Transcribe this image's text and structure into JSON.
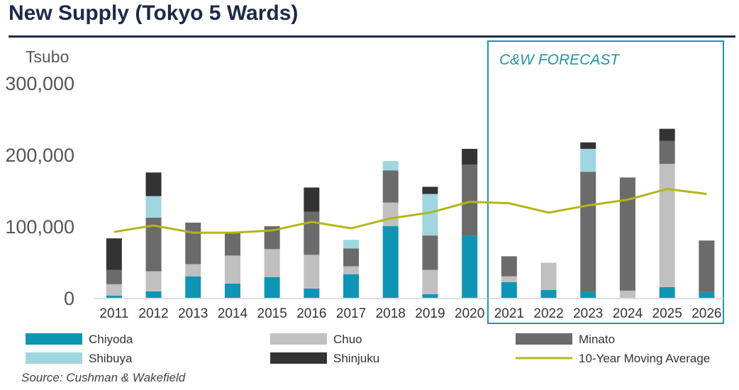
{
  "header": {
    "title": "New Supply (Tokyo 5 Wards)"
  },
  "footer": {
    "source": "Source: Cushman & Wakefield"
  },
  "forecast_label": "C&W FORECAST",
  "colors": {
    "chiyoda": "#0e95b3",
    "chuo": "#c0c0c0",
    "minato": "#6b6b6b",
    "shibuya": "#9fd6e0",
    "shinjuku": "#333333",
    "moving_average": "#b3b519",
    "forecast_box": "#1e96a6",
    "title": "#1b2a4a"
  },
  "chart_data": {
    "type": "bar",
    "stacked": true,
    "ylabel": "Tsubo",
    "ylim": [
      0,
      300000
    ],
    "yticks": [
      "0",
      "100,000",
      "200,000",
      "300,000"
    ],
    "ytick_values": [
      0,
      100000,
      200000,
      300000
    ],
    "grid": false,
    "legend_position": "bottom",
    "categories": [
      "2011",
      "2012",
      "2013",
      "2014",
      "2015",
      "2016",
      "2017",
      "2018",
      "2019",
      "2020",
      "2021",
      "2022",
      "2023",
      "2024",
      "2025",
      "2026"
    ],
    "forecast_from": "2021",
    "series": [
      {
        "name": "Chiyoda",
        "key": "chiyoda",
        "values": [
          3000,
          9000,
          30000,
          20000,
          29000,
          13000,
          33000,
          100000,
          5000,
          87000,
          22000,
          11000,
          8000,
          0,
          15000,
          8000
        ]
      },
      {
        "name": "Chuo",
        "key": "chuo",
        "values": [
          16000,
          28000,
          17000,
          39000,
          39000,
          47000,
          11000,
          33000,
          34000,
          0,
          8000,
          38000,
          0,
          10000,
          172000,
          0
        ]
      },
      {
        "name": "Minato",
        "key": "minato",
        "values": [
          20000,
          75000,
          58000,
          32000,
          32000,
          60000,
          25000,
          45000,
          48000,
          99000,
          28000,
          0,
          168000,
          158000,
          32000,
          72000
        ]
      },
      {
        "name": "Shibuya",
        "key": "shibuya",
        "values": [
          0,
          30000,
          0,
          0,
          0,
          0,
          12000,
          13000,
          58000,
          0,
          0,
          0,
          32000,
          0,
          0,
          0
        ]
      },
      {
        "name": "Shinjuku",
        "key": "shinjuku",
        "values": [
          44000,
          33000,
          0,
          0,
          0,
          34000,
          0,
          0,
          10000,
          22000,
          0,
          0,
          9000,
          0,
          17000,
          0
        ]
      }
    ],
    "line_series": {
      "name": "10-Year Moving Average",
      "key": "moving_average",
      "values": [
        92000,
        101000,
        91000,
        91000,
        94000,
        106000,
        97000,
        111000,
        119000,
        134000,
        132000,
        119000,
        129000,
        137000,
        152000,
        145000
      ]
    }
  }
}
